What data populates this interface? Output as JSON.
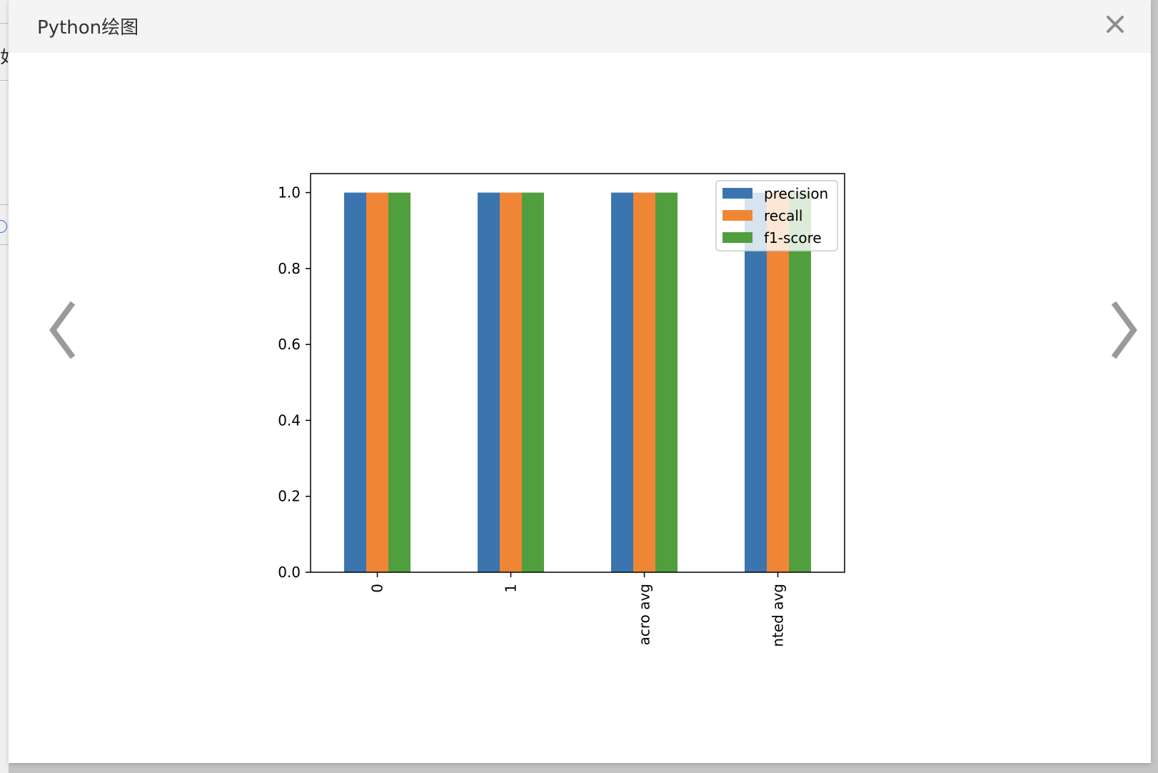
{
  "dialog": {
    "title": "Python绘图",
    "close_icon": "close-icon",
    "prev_icon": "chevron-left-icon",
    "next_icon": "chevron-right-icon"
  },
  "background": {
    "partial_glyph": "如"
  },
  "chart_data": {
    "type": "bar",
    "categories": [
      "0",
      "1",
      "acro avg",
      "nted avg"
    ],
    "series": [
      {
        "name": "precision",
        "values": [
          1.0,
          1.0,
          1.0,
          1.0
        ],
        "color": "#3b75af"
      },
      {
        "name": "recall",
        "values": [
          1.0,
          1.0,
          1.0,
          1.0
        ],
        "color": "#ef8636"
      },
      {
        "name": "f1-score",
        "values": [
          1.0,
          1.0,
          1.0,
          1.0
        ],
        "color": "#519e3e"
      }
    ],
    "ylim": [
      0.0,
      1.05
    ],
    "yticks": [
      "0.0",
      "0.2",
      "0.4",
      "0.6",
      "0.8",
      "1.0"
    ],
    "xlabel": "",
    "ylabel": "",
    "title": "",
    "grid": false,
    "legend_position": "top-right",
    "xtick_rotation": "vertical"
  }
}
